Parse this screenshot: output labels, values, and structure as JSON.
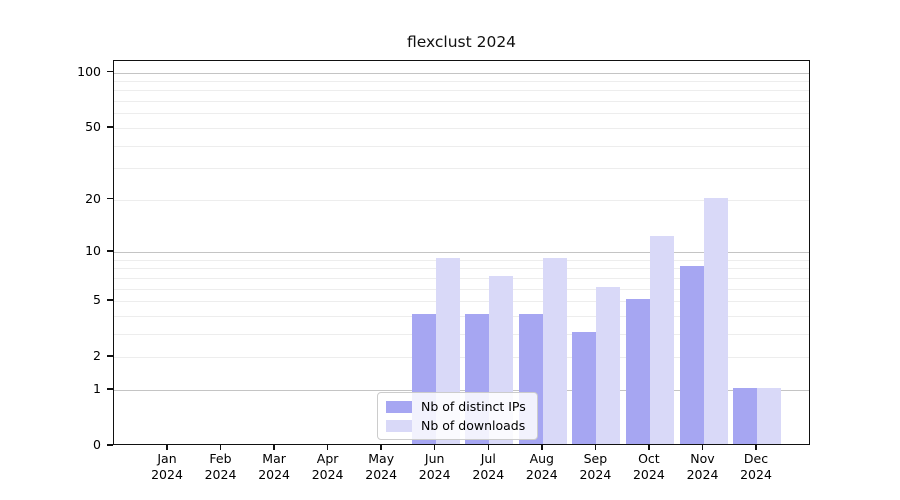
{
  "chart_data": {
    "type": "bar",
    "title": "flexclust 2024",
    "categories": [
      "Jan 2024",
      "Feb 2024",
      "Mar 2024",
      "Apr 2024",
      "May 2024",
      "Jun 2024",
      "Jul 2024",
      "Aug 2024",
      "Sep 2024",
      "Oct 2024",
      "Nov 2024",
      "Dec 2024"
    ],
    "series": [
      {
        "name": "Nb of distinct IPs",
        "color": "#a6a6f2",
        "values": [
          0,
          0,
          0,
          0,
          0,
          4,
          4,
          4,
          3,
          5,
          8,
          1
        ]
      },
      {
        "name": "Nb of downloads",
        "color": "#d9d9f8",
        "values": [
          0,
          0,
          0,
          0,
          0,
          9,
          7,
          9,
          6,
          12,
          20,
          1
        ]
      }
    ],
    "yscale": "log1p",
    "ylim": [
      0,
      115.5
    ],
    "y_tick_values": [
      0,
      1,
      2,
      5,
      10,
      20,
      50,
      100
    ],
    "y_tick_labels": [
      "0",
      "1",
      "2",
      "5",
      "10",
      "20",
      "50",
      "100"
    ],
    "y_major_gridlines": [
      1,
      10,
      100
    ],
    "y_minor_gridlines": [
      2,
      3,
      4,
      5,
      6,
      7,
      8,
      9,
      20,
      30,
      40,
      50,
      60,
      70,
      80,
      90
    ],
    "legend": {
      "location": "lower center"
    },
    "colors": {
      "major_grid": "#c4c4c4",
      "minor_grid": "#ededed",
      "axis": "#111111",
      "background": "#ffffff"
    }
  }
}
